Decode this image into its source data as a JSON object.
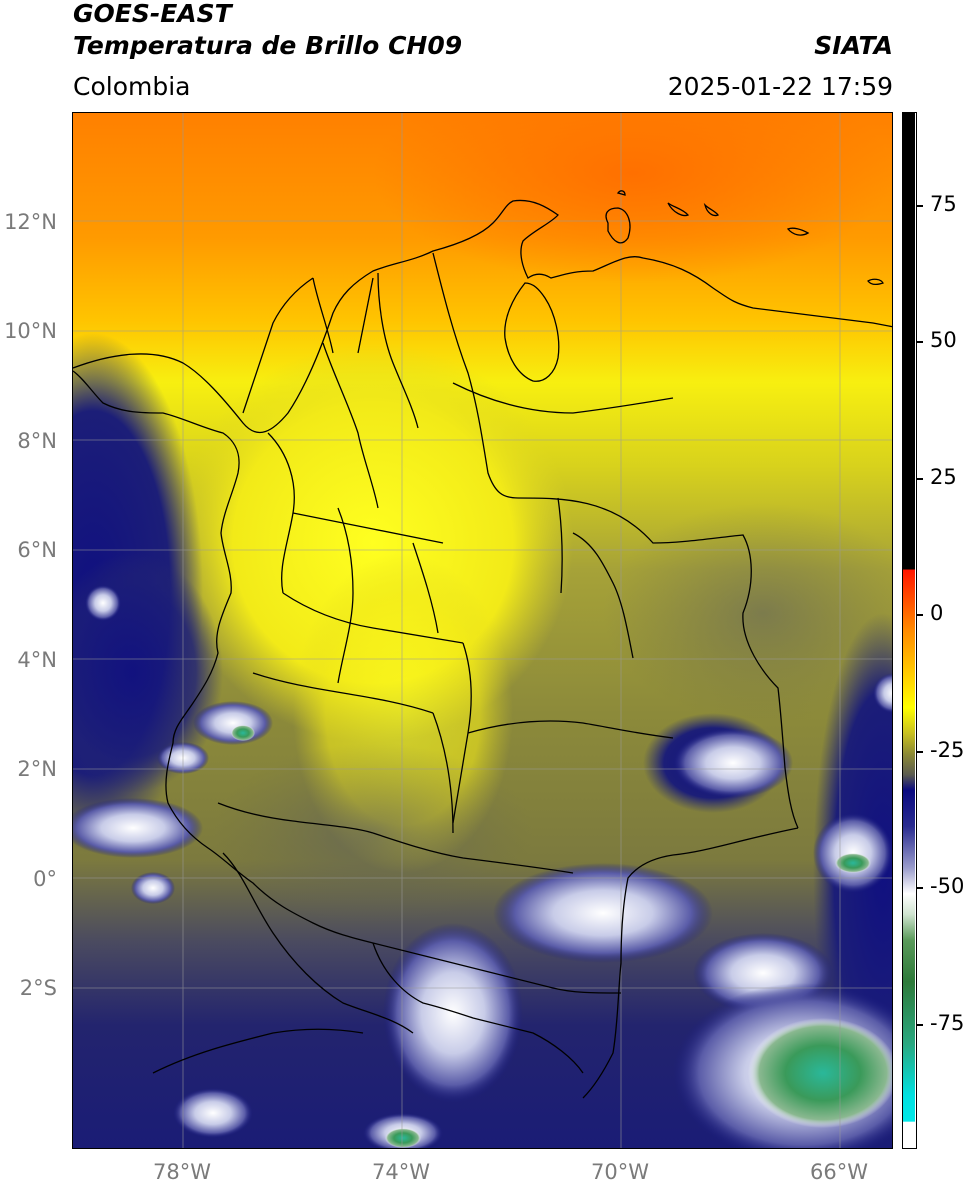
{
  "header": {
    "title_line1": "GOES-EAST",
    "title_line2": "Temperatura de Brillo CH09",
    "source": "SIATA",
    "region": "Colombia",
    "datetime": "2025-01-22 17:59"
  },
  "map": {
    "lat_labels": [
      "12°N",
      "10°N",
      "8°N",
      "6°N",
      "4°N",
      "2°N",
      "0°",
      "2°S"
    ],
    "lon_labels": [
      "78°W",
      "74°W",
      "70°W",
      "66°W"
    ]
  },
  "colorbar": {
    "labels": [
      "75",
      "50",
      "25",
      "0",
      "-25",
      "-50",
      "-75"
    ],
    "colors": {
      "black": "#000000",
      "red": "#e8190a",
      "orange": "#ff8c00",
      "yellow": "#ffff00",
      "olive": "#8a8a2a",
      "navy": "#0a0a80",
      "white": "#ffffff",
      "green": "#3a8a3a",
      "cyan": "#00e0e0"
    }
  }
}
